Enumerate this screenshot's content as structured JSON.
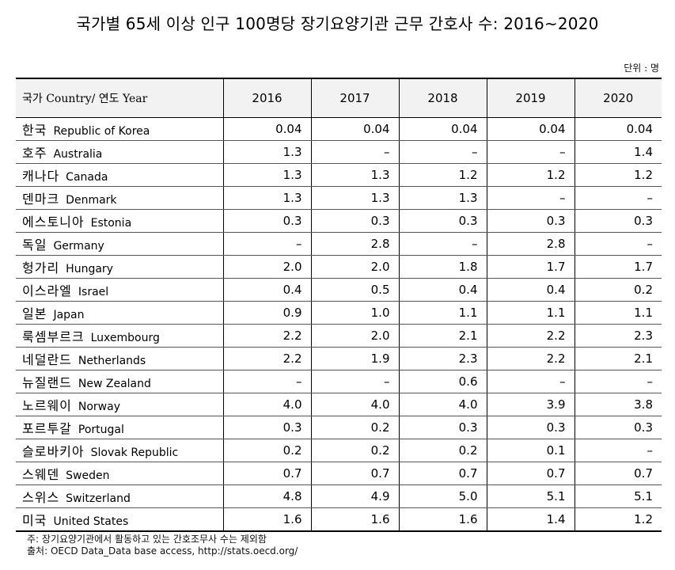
{
  "title": "국가별 65세 이상 인구 100명당 장기요양기관 근무 간호사 수: 2016~2020",
  "unit": "단위 : 명",
  "header": {
    "country": "국가 Country/ 연도 Year",
    "years": [
      "2016",
      "2017",
      "2018",
      "2019",
      "2020"
    ]
  },
  "rows": [
    {
      "ko": "한국",
      "en": "Republic of Korea",
      "values": [
        "0.04",
        "0.04",
        "0.04",
        "0.04",
        "0.04"
      ]
    },
    {
      "ko": "호주",
      "en": "Australia",
      "values": [
        "1.3",
        "–",
        "–",
        "–",
        "1.4"
      ]
    },
    {
      "ko": "캐나다",
      "en": "Canada",
      "values": [
        "1.3",
        "1.3",
        "1.2",
        "1.2",
        "1.2"
      ]
    },
    {
      "ko": "덴마크",
      "en": "Denmark",
      "values": [
        "1.3",
        "1.3",
        "1.3",
        "–",
        "–"
      ]
    },
    {
      "ko": "에스토니아",
      "en": "Estonia",
      "values": [
        "0.3",
        "0.3",
        "0.3",
        "0.3",
        "0.3"
      ]
    },
    {
      "ko": "독일",
      "en": "Germany",
      "values": [
        "–",
        "2.8",
        "–",
        "2.8",
        "–"
      ]
    },
    {
      "ko": "헝가리",
      "en": "Hungary",
      "values": [
        "2.0",
        "2.0",
        "1.8",
        "1.7",
        "1.7"
      ]
    },
    {
      "ko": "이스라엘",
      "en": "Israel",
      "values": [
        "0.4",
        "0.5",
        "0.4",
        "0.4",
        "0.2"
      ]
    },
    {
      "ko": "일본",
      "en": "Japan",
      "values": [
        "0.9",
        "1.0",
        "1.1",
        "1.1",
        "1.1"
      ]
    },
    {
      "ko": "룩셈부르크",
      "en": "Luxembourg",
      "values": [
        "2.2",
        "2.0",
        "2.1",
        "2.2",
        "2.3"
      ]
    },
    {
      "ko": "네덜란드",
      "en": "Netherlands",
      "values": [
        "2.2",
        "1.9",
        "2.3",
        "2.2",
        "2.1"
      ]
    },
    {
      "ko": "뉴질랜드",
      "en": "New Zealand",
      "values": [
        "–",
        "–",
        "0.6",
        "–",
        "–"
      ]
    },
    {
      "ko": "노르웨이",
      "en": "Norway",
      "values": [
        "4.0",
        "4.0",
        "4.0",
        "3.9",
        "3.8"
      ]
    },
    {
      "ko": "포르투갈",
      "en": "Portugal",
      "values": [
        "0.3",
        "0.2",
        "0.3",
        "0.3",
        "0.3"
      ]
    },
    {
      "ko": "슬로바키아",
      "en": "Slovak Republic",
      "values": [
        "0.2",
        "0.2",
        "0.2",
        "0.1",
        "–"
      ]
    },
    {
      "ko": "스웨덴",
      "en": "Sweden",
      "values": [
        "0.7",
        "0.7",
        "0.7",
        "0.7",
        "0.7"
      ]
    },
    {
      "ko": "스위스",
      "en": "Switzerland",
      "values": [
        "4.8",
        "4.9",
        "5.0",
        "5.1",
        "5.1"
      ]
    },
    {
      "ko": "미국",
      "en": "United States",
      "values": [
        "1.6",
        "1.6",
        "1.6",
        "1.4",
        "1.2"
      ]
    }
  ],
  "notes": {
    "note": "주: 장기요양기관에서 활동하고 있는 간호조무사 수는 제외함",
    "source": "출처: OECD Data_Data base access, http://stats.oecd.org/"
  }
}
